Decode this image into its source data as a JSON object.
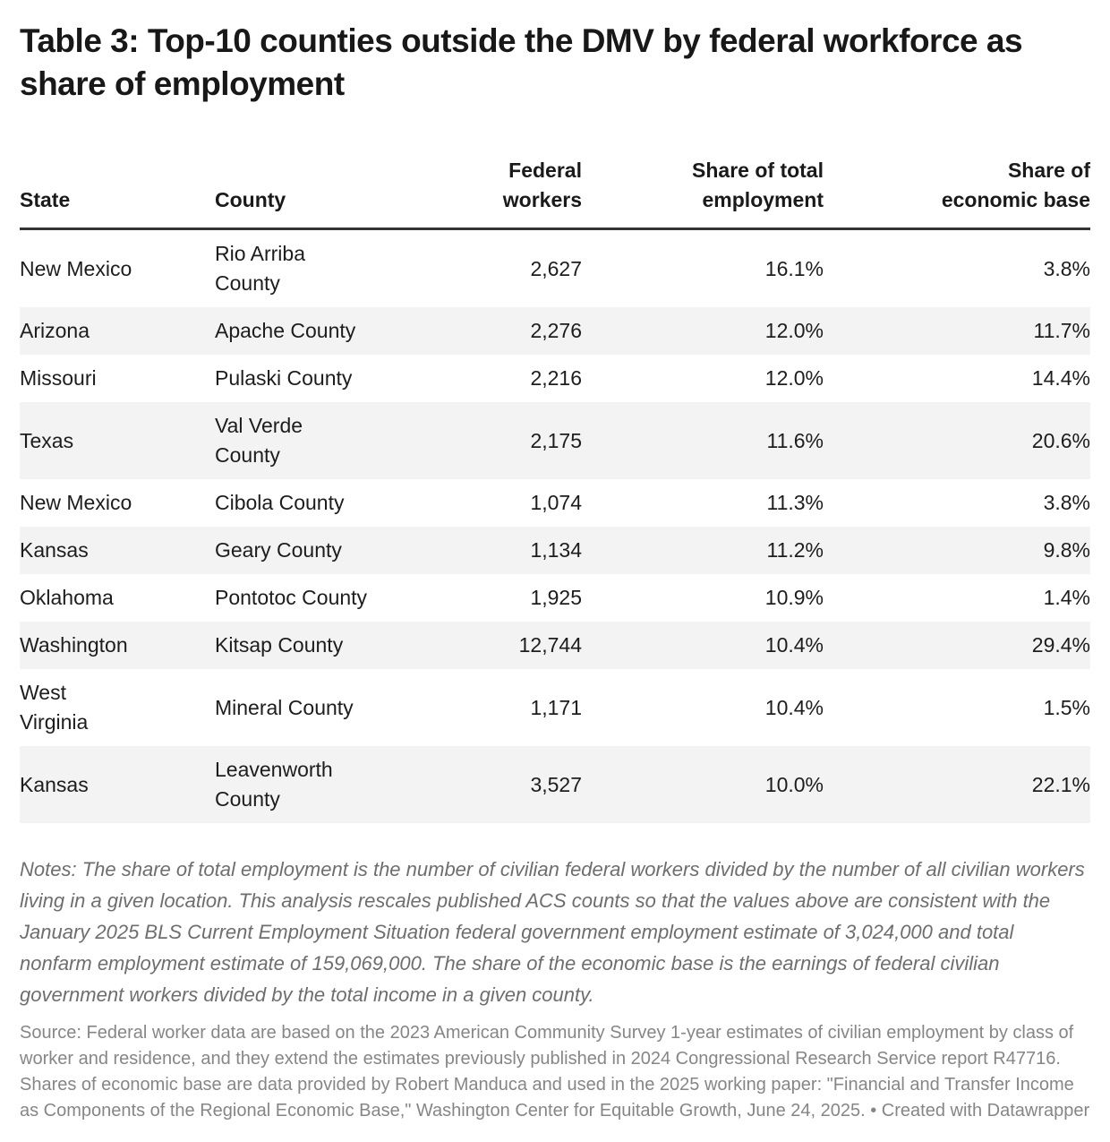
{
  "title": "Table 3: Top-10 counties outside the DMV by federal workforce as share of employment",
  "notes": "Notes: The share of total employment is the number of civilian federal workers divided by the number of all civilian workers living in a given location. This analysis rescales published ACS counts so that the values above are consistent with the January 2025 BLS Current Employment Situation federal government employment estimate of 3,024,000 and total nonfarm employment estimate of 159,069,000. The share of the economic base is the earnings of federal civilian government workers divided by the total income in a given county.",
  "source": "Source: Federal worker data are based on the 2023 American Community Survey 1-year estimates of civilian employment by class of worker and residence, and they extend the estimates previously published in 2024 Congressional Research Service report R47716. Shares of economic base are data provided by Robert Manduca and used in the 2025 working paper: \"Financial and Transfer Income as Components of the Regional Economic Base,\" Washington Center for Equitable Growth, June 24, 2025. • Created with Datawrapper",
  "colors": {
    "background": "#ffffff",
    "row_stripe": "#f3f3f3",
    "header_rule": "#333333",
    "body_text": "#1d1d1d",
    "notes_text": "#6e6e6e",
    "source_text": "#868686"
  },
  "chart_data": {
    "type": "table",
    "title": "Table 3: Top-10 counties outside the DMV by federal workforce as share of employment",
    "columns": [
      {
        "key": "state",
        "label": "State",
        "align": "left"
      },
      {
        "key": "county",
        "label": "County",
        "align": "left"
      },
      {
        "key": "federal_workers",
        "label": "Federal\nworkers",
        "align": "right"
      },
      {
        "key": "share_total_employment",
        "label": "Share of total\nemployment",
        "align": "right"
      },
      {
        "key": "share_economic_base",
        "label": "Share of\neconomic base",
        "align": "right"
      }
    ],
    "rows": [
      {
        "state": "New Mexico",
        "county": "Rio Arriba\nCounty",
        "federal_workers": "2,627",
        "share_total_employment": "16.1%",
        "share_economic_base": "3.8%"
      },
      {
        "state": "Arizona",
        "county": "Apache County",
        "federal_workers": "2,276",
        "share_total_employment": "12.0%",
        "share_economic_base": "11.7%"
      },
      {
        "state": "Missouri",
        "county": "Pulaski County",
        "federal_workers": "2,216",
        "share_total_employment": "12.0%",
        "share_economic_base": "14.4%"
      },
      {
        "state": "Texas",
        "county": "Val Verde\nCounty",
        "federal_workers": "2,175",
        "share_total_employment": "11.6%",
        "share_economic_base": "20.6%"
      },
      {
        "state": "New Mexico",
        "county": "Cibola County",
        "federal_workers": "1,074",
        "share_total_employment": "11.3%",
        "share_economic_base": "3.8%"
      },
      {
        "state": "Kansas",
        "county": "Geary County",
        "federal_workers": "1,134",
        "share_total_employment": "11.2%",
        "share_economic_base": "9.8%"
      },
      {
        "state": "Oklahoma",
        "county": "Pontotoc County",
        "federal_workers": "1,925",
        "share_total_employment": "10.9%",
        "share_economic_base": "1.4%"
      },
      {
        "state": "Washington",
        "county": "Kitsap County",
        "federal_workers": "12,744",
        "share_total_employment": "10.4%",
        "share_economic_base": "29.4%"
      },
      {
        "state": "West\nVirginia",
        "county": "Mineral County",
        "federal_workers": "1,171",
        "share_total_employment": "10.4%",
        "share_economic_base": "1.5%"
      },
      {
        "state": "Kansas",
        "county": "Leavenworth\nCounty",
        "federal_workers": "3,527",
        "share_total_employment": "10.0%",
        "share_economic_base": "22.1%"
      }
    ]
  }
}
